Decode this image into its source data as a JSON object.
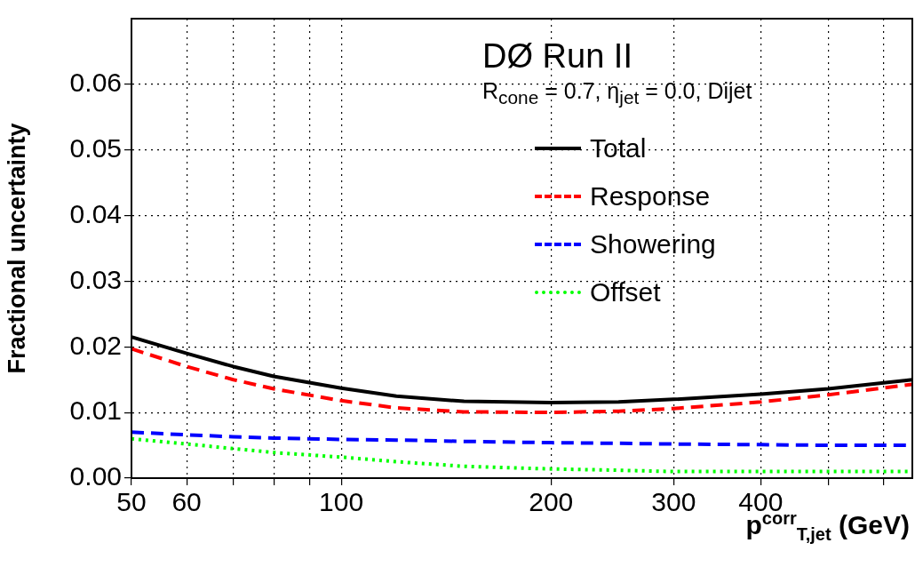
{
  "chart_data": {
    "type": "line",
    "title": "DØ Run II",
    "subtitle": "R$_{cone}$ = 0.7,   η$_{jet}$ = 0.0,   Dijet",
    "xlabel": "p$^{corr}$$_{T,jet}$   (GeV)",
    "ylabel": "Fractional uncertainty",
    "x": [
      50,
      60,
      70,
      80,
      100,
      120,
      150,
      200,
      250,
      300,
      400,
      500,
      660
    ],
    "series": [
      {
        "name": "Total",
        "color": "#000000",
        "line_style": "solid",
        "values": [
          0.0215,
          0.019,
          0.017,
          0.0155,
          0.0137,
          0.0125,
          0.0117,
          0.0115,
          0.0116,
          0.012,
          0.0128,
          0.0136,
          0.015
        ]
      },
      {
        "name": "Response",
        "color": "#ff0000",
        "line_style": "dashed",
        "values": [
          0.0197,
          0.017,
          0.015,
          0.0136,
          0.0118,
          0.0107,
          0.0101,
          0.01,
          0.0102,
          0.0106,
          0.0116,
          0.0127,
          0.0143
        ]
      },
      {
        "name": "Showering",
        "color": "#0000ff",
        "line_style": "dashed",
        "values": [
          0.007,
          0.0066,
          0.0063,
          0.0061,
          0.0059,
          0.0058,
          0.0056,
          0.0054,
          0.0053,
          0.0052,
          0.0051,
          0.005,
          0.005
        ]
      },
      {
        "name": "Offset",
        "color": "#00ff00",
        "line_style": "dotted",
        "values": [
          0.006,
          0.0052,
          0.0045,
          0.0039,
          0.0032,
          0.0025,
          0.0018,
          0.0014,
          0.0012,
          0.001,
          0.001,
          0.001,
          0.001
        ]
      }
    ],
    "log": "x",
    "xlim": [
      50,
      660
    ],
    "ylim": [
      0,
      0.07
    ],
    "xticks": [
      50,
      60,
      {
        "value": 70,
        "label": null
      },
      {
        "value": 80,
        "label": null
      },
      {
        "value": 90,
        "label": null
      },
      100,
      200,
      300,
      400,
      {
        "value": 500,
        "label": null
      },
      {
        "value": 600,
        "label": null
      }
    ],
    "yticks": [
      {
        "value": 0,
        "label": "0.00"
      },
      {
        "value": 0.01,
        "label": "0.01"
      },
      {
        "value": 0.02,
        "label": "0.02"
      },
      {
        "value": 0.03,
        "label": "0.03"
      },
      {
        "value": 0.04,
        "label": "0.04"
      },
      {
        "value": 0.05,
        "label": "0.05"
      },
      {
        "value": 0.06,
        "label": "0.06"
      }
    ],
    "grid": true,
    "legend": "top right",
    "marker": "none"
  }
}
